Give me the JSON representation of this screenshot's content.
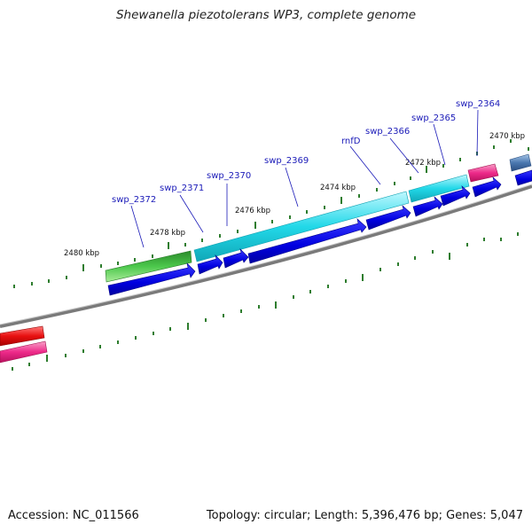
{
  "title": "Shewanella piezotolerans WP3, complete genome",
  "footer": {
    "accession": "Accession: NC_011566",
    "topology": "Topology: circular; Length: 5,396,476 bp; Genes: 5,047"
  },
  "scale_labels": [
    "2480 kbp",
    "2478 kbp",
    "2476 kbp",
    "2474 kbp",
    "2472 kbp",
    "2470 kbp"
  ],
  "gene_labels": [
    "swp_2372",
    "swp_2371",
    "swp_2370",
    "swp_2369",
    "rnfD",
    "swp_2366",
    "swp_2365",
    "swp_2364"
  ],
  "colors": {
    "backbone": "#7a7a7a",
    "tick": "#2e7d2e",
    "cds": "#0000dd",
    "cyan_feature": "#22d8e8",
    "green_feature": "#3cb83c",
    "pink_feature": "#ee2a8a",
    "red_feature": "#e01010",
    "steel_feature": "#4a78b0",
    "label": "#1a1ab8"
  }
}
